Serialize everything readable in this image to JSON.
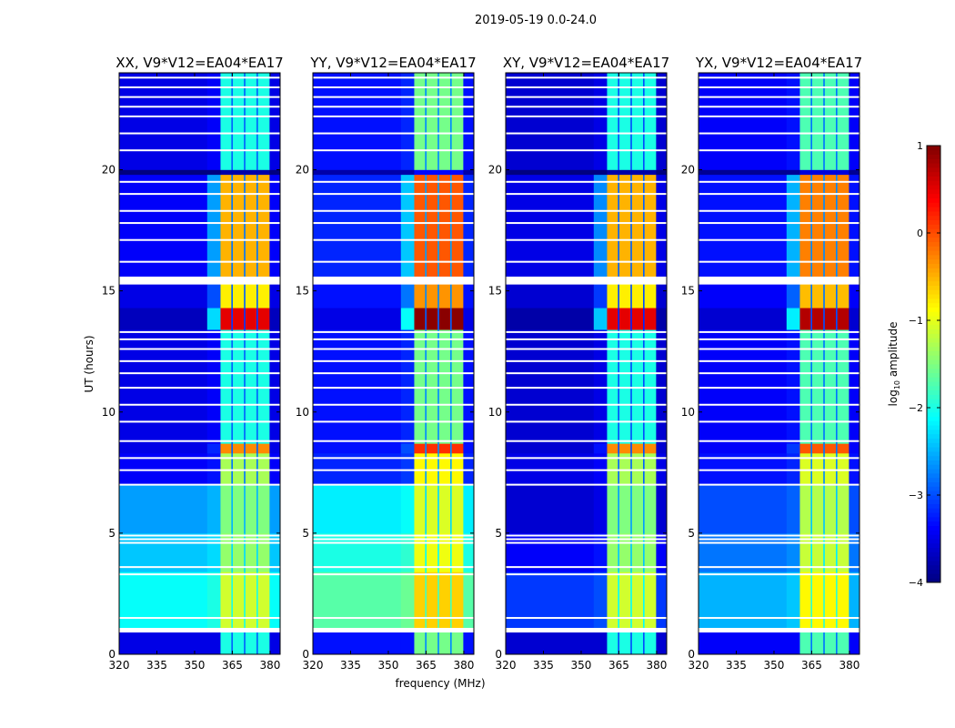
{
  "chart_data": {
    "type": "heatmap",
    "title": "2019-05-19 0.0-24.0",
    "xlabel": "frequency (MHz)",
    "ylabel": "UT (hours)",
    "xlim": [
      320,
      384
    ],
    "ylim": [
      0,
      24
    ],
    "xticks": [
      320,
      335,
      350,
      365,
      380
    ],
    "yticks": [
      0,
      5,
      10,
      15,
      20
    ],
    "colorbar": {
      "label_main": "log",
      "label_sub": "10",
      "label_rest": " amplitude",
      "range": [
        -4,
        1
      ],
      "ticks": [
        -4,
        -3,
        -2,
        -1,
        0,
        1
      ],
      "tick_labels": [
        "−4",
        "−3",
        "−2",
        "−1",
        "0",
        "1"
      ],
      "colormap": "jet"
    },
    "panels": [
      {
        "title": "XX, V9*V12=EA04*EA17",
        "bg_offset": 0,
        "band_offset": 0,
        "low_bg_offset": 0.5
      },
      {
        "title": "YY, V9*V12=EA04*EA17",
        "bg_offset": 0.2,
        "band_offset": 0.45,
        "low_bg_offset": 0.7
      },
      {
        "title": "XY, V9*V12=EA04*EA17",
        "bg_offset": -0.1,
        "band_offset": 0,
        "low_bg_offset": -0.4
      },
      {
        "title": "YX, V9*V12=EA04*EA17",
        "bg_offset": 0.1,
        "band_offset": 0.25,
        "low_bg_offset": 0
      }
    ],
    "frequency_columns": [
      {
        "from": 320,
        "to": 355,
        "kind": "bg"
      },
      {
        "from": 355,
        "to": 360.3,
        "kind": "shoulder"
      },
      {
        "from": 360.3,
        "to": 364.6,
        "kind": "band"
      },
      {
        "from": 364.6,
        "to": 365.2,
        "kind": "gap"
      },
      {
        "from": 365.2,
        "to": 369.6,
        "kind": "band"
      },
      {
        "from": 369.6,
        "to": 370.2,
        "kind": "gap"
      },
      {
        "from": 370.2,
        "to": 374.6,
        "kind": "band"
      },
      {
        "from": 374.6,
        "to": 375.2,
        "kind": "gap"
      },
      {
        "from": 375.2,
        "to": 379.8,
        "kind": "band"
      },
      {
        "from": 379.8,
        "to": 384,
        "kind": "bg"
      }
    ],
    "time_blocks": [
      {
        "from": 0,
        "to": 0.9,
        "bg": -3.5,
        "shoulder": -3.5,
        "band": -2.0
      },
      {
        "from": 1.1,
        "to": 3.4,
        "bg": -2.6,
        "shoulder": -2.5,
        "band": -1.1,
        "low": true
      },
      {
        "from": 3.4,
        "to": 5.0,
        "bg": -2.9,
        "shoulder": -2.8,
        "band": -1.4,
        "low": true
      },
      {
        "from": 5.0,
        "to": 7.0,
        "bg": -3.1,
        "shoulder": -3.0,
        "band": -1.5,
        "low": true
      },
      {
        "from": 7.0,
        "to": 8.3,
        "bg": -3.4,
        "shoulder": -3.3,
        "band": -1.3
      },
      {
        "from": 8.3,
        "to": 8.7,
        "bg": -3.5,
        "shoulder": -3.2,
        "band": -0.3
      },
      {
        "from": 8.7,
        "to": 13.4,
        "bg": -3.5,
        "shoulder": -3.4,
        "band": -2.0
      },
      {
        "from": 13.4,
        "to": 14.3,
        "bg": -3.7,
        "shoulder": -2.3,
        "band": 0.5
      },
      {
        "from": 14.3,
        "to": 15.3,
        "bg": -3.5,
        "shoulder": -3.0,
        "band": -0.8
      },
      {
        "from": 15.6,
        "to": 19.8,
        "bg": -3.4,
        "shoulder": -2.6,
        "band": -0.5
      },
      {
        "from": 19.8,
        "to": 20.0,
        "bg": -4.0,
        "shoulder": -4.0,
        "band": -3.8
      },
      {
        "from": 20.0,
        "to": 24.0,
        "bg": -3.5,
        "shoulder": -3.4,
        "band": -2.0
      }
    ],
    "flagged_times": [
      0.95,
      1.05,
      1.5,
      3.3,
      3.6,
      4.6,
      4.75,
      4.9,
      7.0,
      7.6,
      8.1,
      8.8,
      9.6,
      10.3,
      11.0,
      11.6,
      12.1,
      12.6,
      13.0,
      13.3,
      15.3,
      15.45,
      16.2,
      17.1,
      17.8,
      18.3,
      19.0,
      19.5,
      20.8,
      21.5,
      22.2,
      22.6,
      23.0,
      23.4,
      23.8
    ]
  }
}
